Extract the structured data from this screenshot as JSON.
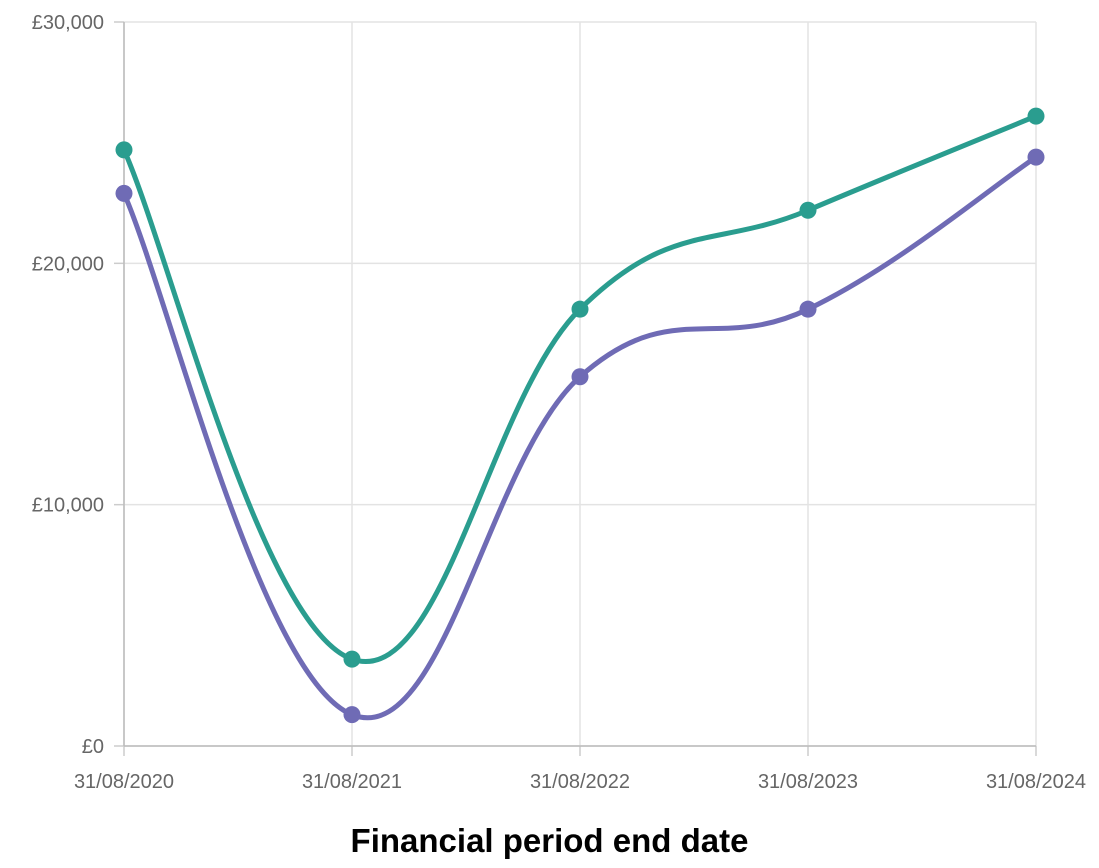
{
  "chart_data": {
    "type": "line",
    "xlabel": "Financial period end date",
    "ylabel": "",
    "categories": [
      "31/08/2020",
      "31/08/2021",
      "31/08/2022",
      "31/08/2023",
      "31/08/2024"
    ],
    "y_ticks": [
      "£0",
      "£10,000",
      "£20,000",
      "£30,000"
    ],
    "y_tick_values": [
      0,
      10000,
      20000,
      30000
    ],
    "ylim": [
      0,
      30000
    ],
    "grid": true,
    "legend": "none",
    "series": [
      {
        "values": [
          24700,
          3600,
          18100,
          22200,
          26100
        ],
        "color": "#2a9d8f"
      },
      {
        "values": [
          22900,
          1300,
          15300,
          18100,
          24400
        ],
        "color": "#6f6bb5"
      }
    ]
  }
}
